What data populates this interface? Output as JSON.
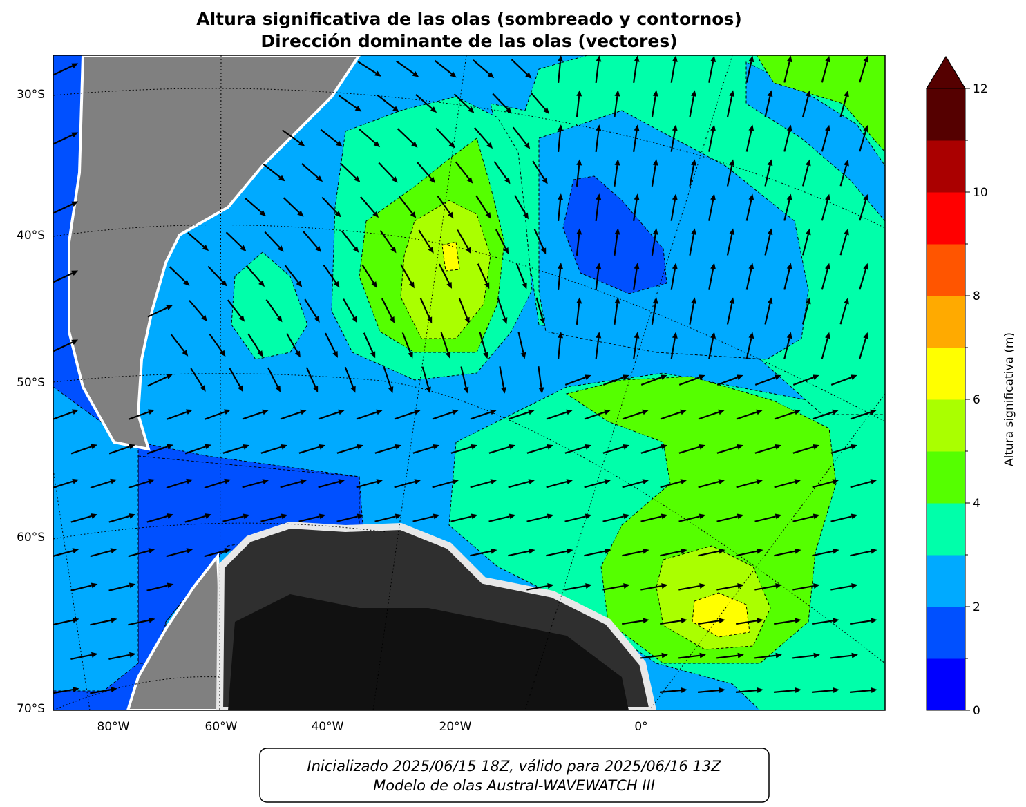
{
  "header": {
    "title_line1": "Altura significativa de las olas (sombreado y contornos)",
    "title_line2": "Dirección dominante de las olas (vectores)"
  },
  "map": {
    "lat_labels": [
      "30°S",
      "40°S",
      "50°S",
      "60°S",
      "70°S"
    ],
    "lon_labels": [
      "80°W",
      "60°W",
      "40°W",
      "20°W",
      "0°"
    ]
  },
  "colorbar": {
    "label": "Altura significativa (m)",
    "levels": [
      0,
      1,
      2,
      3,
      4,
      5,
      6,
      7,
      8,
      9,
      10,
      11,
      12
    ],
    "colors": [
      "#0000ff",
      "#0050ff",
      "#00aaff",
      "#00ffaa",
      "#55ff00",
      "#aaff00",
      "#ffff00",
      "#ffaa00",
      "#ff5500",
      "#ff0000",
      "#aa0000",
      "#550000"
    ],
    "ticks": [
      0,
      2,
      4,
      6,
      8,
      10,
      12
    ],
    "extend": "max"
  },
  "footer": {
    "line1": "Inicializado 2025/06/15 18Z, válido para 2025/06/16 13Z",
    "line2": "Modelo de olas Austral-WAVEWATCH III"
  }
}
